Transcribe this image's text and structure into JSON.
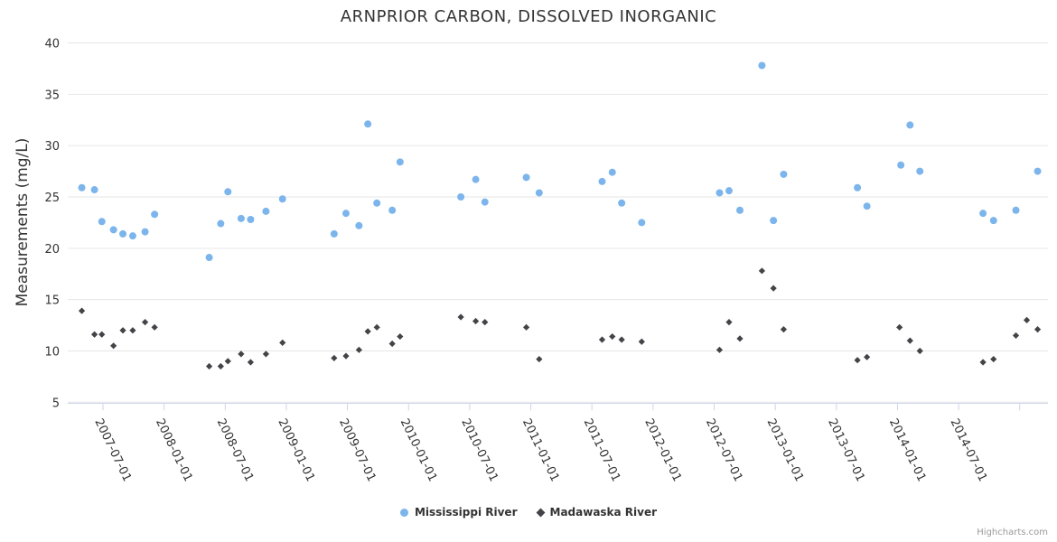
{
  "credit": "Highcharts.com",
  "colors": {
    "background": "#ffffff",
    "title_text": "#333333",
    "axis_label_text": "#333333",
    "grid_line": "#e6e6e6",
    "axis_line": "#ccd6eb",
    "mississippi_river": "#7cb5ec",
    "madawaska_river": "#434348",
    "credit_text": "#999999"
  },
  "chart_data": {
    "type": "scatter",
    "title": "ARNPRIOR CARBON, DISSOLVED INORGANIC",
    "xlabel": "",
    "ylabel": "Measurements (mg/L)",
    "ylim": [
      5,
      40
    ],
    "yticks": [
      5,
      10,
      15,
      20,
      25,
      30,
      35,
      40
    ],
    "x_axis_type": "datetime",
    "xlim": [
      "2007-03-15",
      "2015-03-20"
    ],
    "xtick_interval": "6 months",
    "xtick_labels": [
      "2007-07-01",
      "2008-01-01",
      "2008-07-01",
      "2009-01-01",
      "2009-07-01",
      "2010-01-01",
      "2010-07-01",
      "2011-01-01",
      "2011-07-01",
      "2012-01-01",
      "2012-07-01",
      "2013-01-01",
      "2013-07-01",
      "2014-01-01",
      "2014-07-01"
    ],
    "grid": "horizontal",
    "legend_position": "bottom-center",
    "series": [
      {
        "name": "Mississippi River",
        "color": "#7cb5ec",
        "marker": "circle",
        "points": [
          [
            "2007-04-29",
            25.9
          ],
          [
            "2007-06-06",
            25.7
          ],
          [
            "2007-06-28",
            22.6
          ],
          [
            "2007-08-02",
            21.8
          ],
          [
            "2007-08-30",
            21.4
          ],
          [
            "2007-09-29",
            21.2
          ],
          [
            "2007-11-05",
            21.6
          ],
          [
            "2007-12-03",
            23.3
          ],
          [
            "2008-05-14",
            19.1
          ],
          [
            "2008-06-18",
            22.4
          ],
          [
            "2008-07-09",
            25.5
          ],
          [
            "2008-08-18",
            22.9
          ],
          [
            "2008-09-16",
            22.8
          ],
          [
            "2008-11-01",
            23.6
          ],
          [
            "2008-12-20",
            24.8
          ],
          [
            "2009-05-22",
            21.4
          ],
          [
            "2009-06-27",
            23.4
          ],
          [
            "2009-08-05",
            22.2
          ],
          [
            "2009-09-01",
            32.1
          ],
          [
            "2009-09-28",
            24.4
          ],
          [
            "2009-11-13",
            23.7
          ],
          [
            "2009-12-06",
            28.4
          ],
          [
            "2010-06-05",
            25.0
          ],
          [
            "2010-07-19",
            26.7
          ],
          [
            "2010-08-16",
            24.5
          ],
          [
            "2010-12-18",
            26.9
          ],
          [
            "2011-01-26",
            25.4
          ],
          [
            "2011-08-01",
            26.5
          ],
          [
            "2011-09-01",
            27.4
          ],
          [
            "2011-09-29",
            24.4
          ],
          [
            "2011-11-28",
            22.5
          ],
          [
            "2012-07-17",
            25.4
          ],
          [
            "2012-08-15",
            25.6
          ],
          [
            "2012-09-17",
            23.7
          ],
          [
            "2012-11-22",
            37.8
          ],
          [
            "2012-12-26",
            22.7
          ],
          [
            "2013-01-26",
            27.2
          ],
          [
            "2013-09-03",
            25.9
          ],
          [
            "2013-10-01",
            24.1
          ],
          [
            "2014-01-11",
            28.1
          ],
          [
            "2014-02-08",
            32.0
          ],
          [
            "2014-03-07",
            27.5
          ],
          [
            "2014-09-13",
            23.4
          ],
          [
            "2014-10-14",
            22.7
          ],
          [
            "2014-12-20",
            23.7
          ],
          [
            "2015-02-24",
            27.5
          ]
        ]
      },
      {
        "name": "Madawaska River",
        "color": "#434348",
        "marker": "diamond",
        "points": [
          [
            "2007-04-29",
            13.9
          ],
          [
            "2007-06-06",
            11.6
          ],
          [
            "2007-06-28",
            11.6
          ],
          [
            "2007-08-02",
            10.5
          ],
          [
            "2007-08-30",
            12.0
          ],
          [
            "2007-09-29",
            12.0
          ],
          [
            "2007-11-05",
            12.8
          ],
          [
            "2007-12-03",
            12.3
          ],
          [
            "2008-05-14",
            8.5
          ],
          [
            "2008-06-18",
            8.5
          ],
          [
            "2008-07-09",
            9.0
          ],
          [
            "2008-08-18",
            9.7
          ],
          [
            "2008-09-16",
            8.9
          ],
          [
            "2008-11-01",
            9.7
          ],
          [
            "2008-12-20",
            10.8
          ],
          [
            "2009-05-22",
            9.3
          ],
          [
            "2009-06-27",
            9.5
          ],
          [
            "2009-08-05",
            10.1
          ],
          [
            "2009-09-01",
            11.9
          ],
          [
            "2009-09-28",
            12.3
          ],
          [
            "2009-11-13",
            10.7
          ],
          [
            "2009-12-06",
            11.4
          ],
          [
            "2010-06-05",
            13.3
          ],
          [
            "2010-07-19",
            12.9
          ],
          [
            "2010-08-16",
            12.8
          ],
          [
            "2010-12-18",
            12.3
          ],
          [
            "2011-01-26",
            9.2
          ],
          [
            "2011-08-01",
            11.1
          ],
          [
            "2011-09-01",
            11.4
          ],
          [
            "2011-09-29",
            11.1
          ],
          [
            "2011-11-28",
            10.9
          ],
          [
            "2012-07-17",
            10.1
          ],
          [
            "2012-08-15",
            12.8
          ],
          [
            "2012-09-17",
            11.2
          ],
          [
            "2012-11-22",
            17.8
          ],
          [
            "2012-12-26",
            16.1
          ],
          [
            "2013-01-26",
            12.1
          ],
          [
            "2013-09-03",
            9.1
          ],
          [
            "2013-10-01",
            9.4
          ],
          [
            "2014-01-07",
            12.3
          ],
          [
            "2014-02-08",
            11.0
          ],
          [
            "2014-03-07",
            10.0
          ],
          [
            "2014-09-13",
            8.9
          ],
          [
            "2014-10-14",
            9.2
          ],
          [
            "2014-12-20",
            11.5
          ],
          [
            "2015-01-22",
            13.0
          ],
          [
            "2015-02-24",
            12.1
          ]
        ]
      }
    ]
  }
}
